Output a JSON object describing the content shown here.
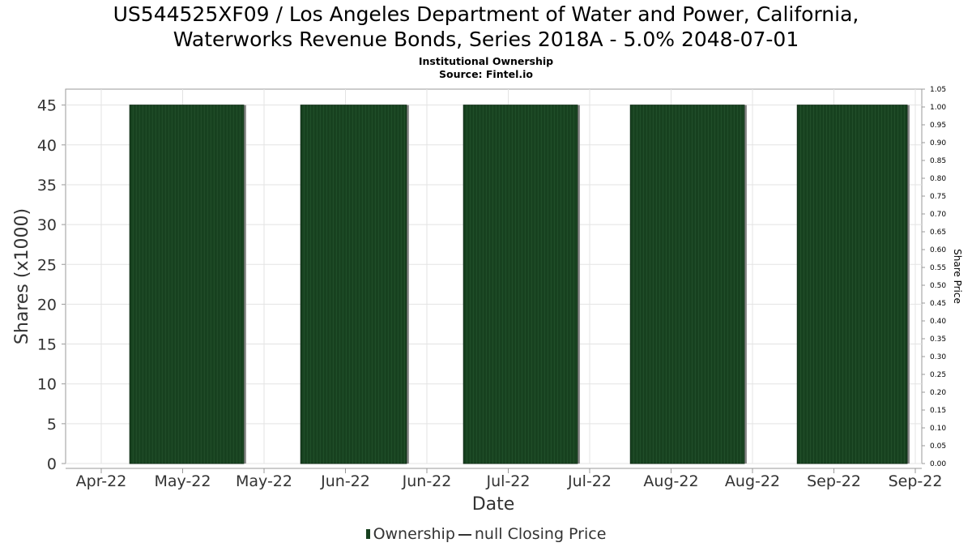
{
  "chart_data": {
    "type": "bar",
    "title_lines": [
      "US544525XF09 / Los Angeles Department of Water and Power, California,",
      "Waterworks Revenue Bonds, Series 2018A - 5.0% 2048-07-01"
    ],
    "subtitle_lines": [
      "Institutional Ownership",
      "Source: Fintel.io"
    ],
    "xlabel": "Date",
    "ylabel": "Shares (x1000)",
    "y2label": "Share Price",
    "ylim": [
      0,
      47
    ],
    "y_ticks": [
      0,
      5,
      10,
      15,
      20,
      25,
      30,
      35,
      40,
      45
    ],
    "y2lim": [
      0,
      1.05
    ],
    "y2_ticks": [
      "0.00",
      "0.05",
      "0.10",
      "0.15",
      "0.20",
      "0.25",
      "0.30",
      "0.35",
      "0.40",
      "0.45",
      "0.50",
      "0.55",
      "0.60",
      "0.65",
      "0.70",
      "0.75",
      "0.80",
      "0.85",
      "0.90",
      "0.95",
      "1.00",
      "1.05"
    ],
    "x_tick_labels": [
      "Apr-22",
      "May-22",
      "May-22",
      "Jun-22",
      "Jun-22",
      "Jul-22",
      "Jul-22",
      "Aug-22",
      "Aug-22",
      "Sep-22",
      "Sep-22"
    ],
    "series": [
      {
        "name": "Ownership",
        "color": "#17411f",
        "segments": [
          {
            "start_tick": 0.35,
            "end_tick": 1.75,
            "value": 45
          },
          {
            "start_tick": 2.45,
            "end_tick": 3.75,
            "value": 45
          },
          {
            "start_tick": 4.45,
            "end_tick": 5.85,
            "value": 45
          },
          {
            "start_tick": 6.5,
            "end_tick": 7.9,
            "value": 45
          },
          {
            "start_tick": 8.55,
            "end_tick": 9.9,
            "value": 45
          }
        ]
      },
      {
        "name": "null Closing Price",
        "color": "#333333",
        "values": []
      }
    ],
    "legend": {
      "position": "bottom-center",
      "items": [
        "Ownership",
        "null Closing Price"
      ]
    },
    "grid": true
  }
}
